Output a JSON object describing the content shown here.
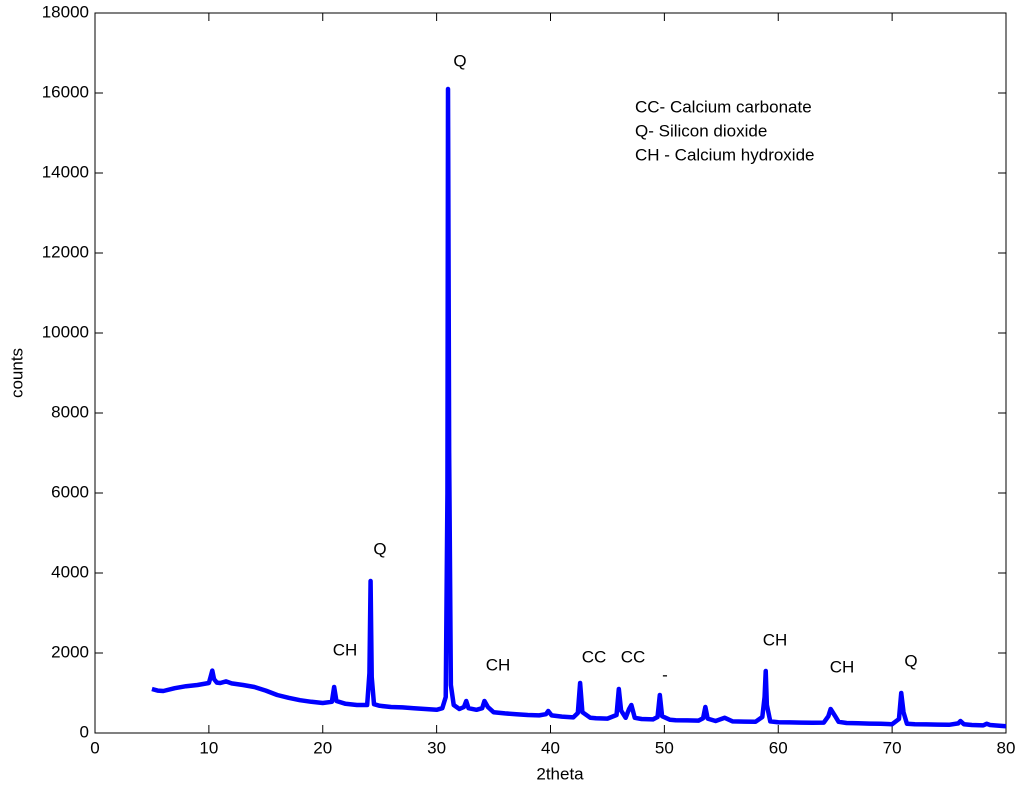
{
  "chart_data": {
    "type": "line",
    "xlabel": "2theta",
    "ylabel": "counts",
    "x": [
      5,
      5.5,
      6,
      7,
      8,
      9,
      10,
      10.15,
      10.3,
      10.45,
      10.7,
      11,
      11.5,
      12,
      13,
      14,
      15,
      16,
      17,
      18,
      19,
      20,
      20.8,
      21,
      21.2,
      22,
      23,
      23.9,
      24.1,
      24.2,
      24.3,
      24.5,
      25,
      26,
      27,
      28,
      29,
      30,
      30.5,
      30.8,
      30.95,
      31.0,
      31.1,
      31.25,
      31.5,
      32,
      32.4,
      32.6,
      32.8,
      33.5,
      34,
      34.2,
      34.5,
      35,
      36,
      37,
      38,
      39,
      39.6,
      39.8,
      40.1,
      41,
      42,
      42.4,
      42.6,
      42.8,
      43.5,
      44,
      45,
      45.8,
      46,
      46.2,
      46.6,
      46.9,
      47.1,
      47.4,
      48,
      49,
      49.4,
      49.6,
      49.8,
      50.5,
      51,
      52,
      53,
      53.4,
      53.6,
      53.8,
      54.5,
      55.3,
      56,
      57,
      58,
      58.6,
      58.8,
      58.9,
      59.0,
      59.3,
      60,
      61,
      62,
      63,
      64,
      64.4,
      64.6,
      65,
      65.3,
      66,
      67,
      68,
      69,
      70,
      70.6,
      70.8,
      71.0,
      71.3,
      72,
      73,
      74,
      75,
      75.8,
      76,
      76.3,
      77,
      78,
      78.3,
      78.6,
      79,
      80
    ],
    "series": [
      {
        "name": "counts",
        "color": "#0000ff",
        "values": [
          1100,
          1060,
          1050,
          1120,
          1170,
          1200,
          1250,
          1400,
          1560,
          1350,
          1260,
          1250,
          1290,
          1240,
          1200,
          1150,
          1060,
          950,
          880,
          820,
          780,
          750,
          780,
          1150,
          800,
          730,
          700,
          700,
          1500,
          3800,
          1400,
          720,
          680,
          650,
          640,
          620,
          600,
          580,
          620,
          900,
          6000,
          16100,
          7000,
          1200,
          700,
          600,
          650,
          800,
          620,
          580,
          620,
          800,
          650,
          520,
          490,
          470,
          450,
          440,
          470,
          550,
          440,
          410,
          390,
          500,
          1250,
          520,
          380,
          370,
          360,
          450,
          1100,
          560,
          380,
          600,
          700,
          380,
          350,
          340,
          400,
          950,
          420,
          330,
          320,
          315,
          310,
          370,
          650,
          360,
          300,
          380,
          290,
          285,
          280,
          400,
          900,
          1550,
          700,
          290,
          270,
          265,
          260,
          255,
          260,
          420,
          600,
          420,
          280,
          250,
          245,
          235,
          230,
          220,
          350,
          1000,
          520,
          230,
          220,
          215,
          210,
          205,
          240,
          300,
          220,
          200,
          190,
          230,
          200,
          190,
          170
        ]
      }
    ],
    "xlim": [
      0,
      80
    ],
    "xticks": [
      0,
      10,
      20,
      30,
      40,
      50,
      60,
      70,
      80
    ],
    "ylim": [
      0,
      18000
    ],
    "yticks": [
      0,
      2000,
      4000,
      6000,
      8000,
      10000,
      12000,
      14000,
      16000,
      18000
    ],
    "grid": false,
    "annotations": [
      "CH",
      "Q",
      "Q",
      "CH",
      "CC",
      "CC",
      "-",
      "CH",
      "CH",
      "Q"
    ],
    "notes": [
      "CC- Calcium carbonate",
      "Q- Silicon dioxide",
      "CH - Calcium hydroxide"
    ]
  }
}
